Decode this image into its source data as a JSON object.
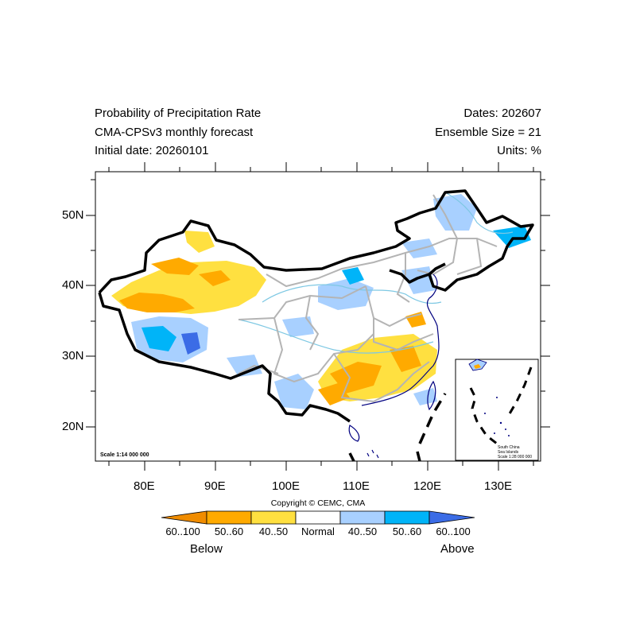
{
  "header": {
    "title": "Probability of Precipitation Rate",
    "model": "CMA-CPSv3 monthly forecast",
    "initial_date": "Initial date: 20260101",
    "dates": "Dates: 202607",
    "ensemble": "Ensemble Size = 21",
    "units": "Units: %"
  },
  "map": {
    "lat_labels": [
      "50N",
      "40N",
      "30N",
      "20N"
    ],
    "lon_labels": [
      "80E",
      "90E",
      "100E",
      "110E",
      "120E",
      "130E"
    ],
    "scale": "Scale 1:14 000 000",
    "inset": {
      "line1": "South China",
      "line2": "Sea Islands",
      "scale": "Scale 1:28 000 000"
    }
  },
  "copyright": "Copyright © CEMC, CMA",
  "colorbar": {
    "labels": [
      "60..100",
      "50..60",
      "40..50",
      "Normal",
      "40..50",
      "50..60",
      "60..100"
    ],
    "colors": [
      "#f08c00",
      "#ffaa00",
      "#ffe040",
      "#ffffff",
      "#a8d0ff",
      "#00b4f8",
      "#3b6ce6"
    ],
    "below": "Below",
    "above": "Above"
  },
  "colors": {
    "border": "#000000",
    "province": "#b4b4b4",
    "coast": "#000080",
    "river": "#7ec8e3"
  }
}
